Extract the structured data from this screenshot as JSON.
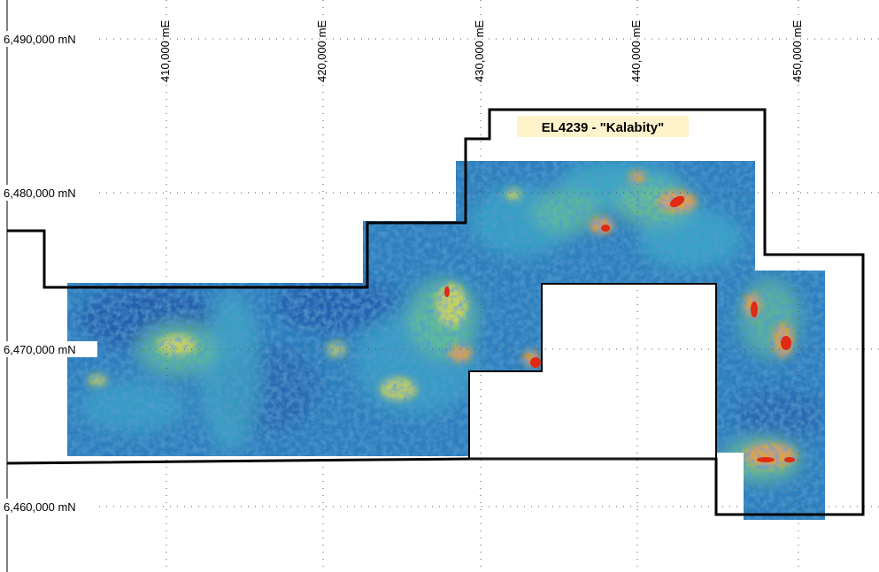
{
  "map": {
    "tenement_label": "EL4239 - \"Kalabity\"",
    "northing_labels": [
      "6,490,000 mN",
      "6,480,000 mN",
      "6,470,000 mN",
      "6,460,000 mN"
    ],
    "easting_labels": [
      "410,000 mE",
      "420,000 mE",
      "430,000 mE",
      "440,000 mE",
      "450,000 mE"
    ]
  },
  "colors": {
    "boundary": "#000000",
    "label_background": "#fff3cc",
    "grid": "#555555",
    "anomaly_ramp": [
      "#1e5aa0",
      "#2f86bf",
      "#3fb0c0",
      "#6cc48c",
      "#d8d84a",
      "#f0a030",
      "#e02a14"
    ]
  }
}
